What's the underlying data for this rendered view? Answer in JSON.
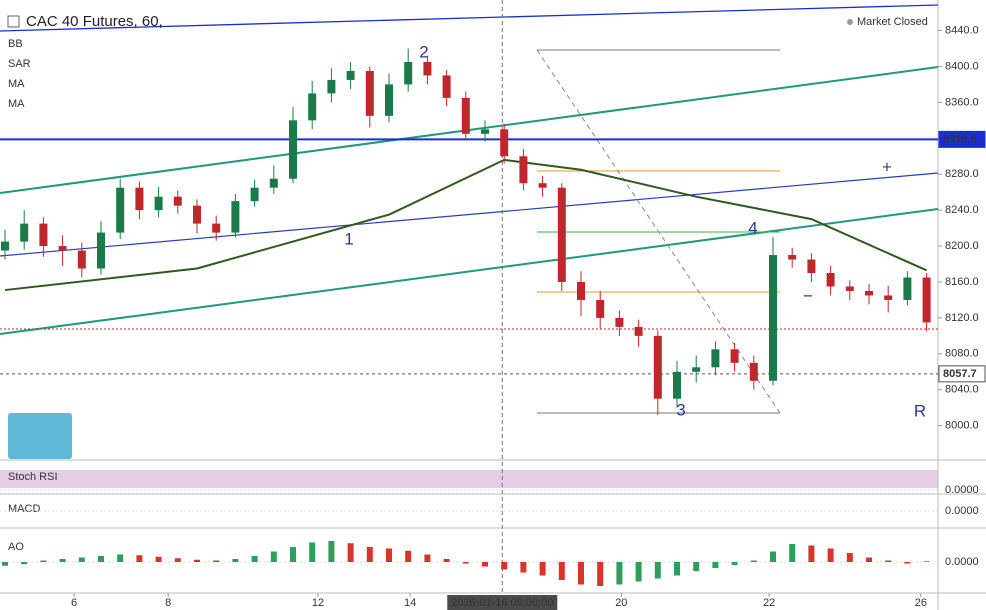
{
  "chart_data": {
    "type": "candlestick",
    "title": "CAC 40 Futures, 60,",
    "status": "Market Closed",
    "indicators": [
      "BB",
      "SAR",
      "MA",
      "MA"
    ],
    "open": [
      8195,
      8205,
      8225,
      8200,
      8195,
      8175,
      8215,
      8265,
      8240,
      8255,
      8245,
      8225,
      8215,
      8250,
      8265,
      8275,
      8340,
      8370,
      8385,
      8395,
      8345,
      8380,
      8405,
      8390,
      8365,
      8325,
      8330,
      8300,
      8270,
      8265,
      8160,
      8140,
      8120,
      8110,
      8100,
      8030,
      8060,
      8065,
      8085,
      8070,
      8050,
      8190,
      8185,
      8170,
      8155,
      8150,
      8145,
      8140,
      8165
    ],
    "high": [
      8218,
      8240,
      8232,
      8212,
      8204,
      8228,
      8275,
      8272,
      8266,
      8262,
      8252,
      8234,
      8258,
      8274,
      8290,
      8355,
      8384,
      8398,
      8405,
      8400,
      8392,
      8420,
      8412,
      8396,
      8372,
      8340,
      8336,
      8308,
      8278,
      8270,
      8172,
      8150,
      8128,
      8118,
      8106,
      8072,
      8078,
      8094,
      8092,
      8078,
      8210,
      8198,
      8192,
      8178,
      8162,
      8158,
      8156,
      8172,
      8170
    ],
    "low": [
      8185,
      8196,
      8188,
      8178,
      8165,
      8168,
      8208,
      8230,
      8232,
      8236,
      8214,
      8206,
      8210,
      8244,
      8258,
      8270,
      8330,
      8360,
      8375,
      8332,
      8338,
      8372,
      8380,
      8356,
      8318,
      8316,
      8292,
      8262,
      8255,
      8150,
      8122,
      8108,
      8100,
      8088,
      8012,
      8020,
      8048,
      8056,
      8060,
      8040,
      8045,
      8176,
      8160,
      8145,
      8140,
      8135,
      8126,
      8134,
      8105
    ],
    "close": [
      8205,
      8225,
      8200,
      8195,
      8175,
      8215,
      8265,
      8240,
      8255,
      8245,
      8225,
      8215,
      8250,
      8265,
      8275,
      8340,
      8370,
      8385,
      8395,
      8345,
      8380,
      8405,
      8390,
      8365,
      8325,
      8330,
      8300,
      8270,
      8265,
      8160,
      8140,
      8120,
      8110,
      8100,
      8030,
      8060,
      8065,
      8085,
      8070,
      8050,
      8190,
      8185,
      8170,
      8155,
      8150,
      8145,
      8140,
      8165,
      8115
    ],
    "up_color": "#1b7a4a",
    "down_color": "#c0262c",
    "ylim": [
      7964,
      8474
    ],
    "yticks": [
      {
        "value": 8000,
        "label": "8000.0"
      },
      {
        "value": 8040,
        "label": "8040.0"
      },
      {
        "value": 8080,
        "label": "8080.0"
      },
      {
        "value": 8120,
        "label": "8120.0"
      },
      {
        "value": 8160,
        "label": "8160.0"
      },
      {
        "value": 8200,
        "label": "8200.0"
      },
      {
        "value": 8240,
        "label": "8240.0"
      },
      {
        "value": 8280,
        "label": "8280.0"
      },
      {
        "value": 8320,
        "label": "8320.0"
      },
      {
        "value": 8360,
        "label": "8360.0"
      },
      {
        "value": 8400,
        "label": "8400.0"
      },
      {
        "value": 8440,
        "label": "8440.0"
      }
    ],
    "xticks": [
      {
        "value": 3.6,
        "label": "6"
      },
      {
        "value": 8.5,
        "label": "8"
      },
      {
        "value": 16.3,
        "label": "12"
      },
      {
        "value": 21.1,
        "label": "14"
      },
      {
        "value": 32.1,
        "label": "20"
      },
      {
        "value": 39.8,
        "label": "22"
      },
      {
        "value": 47.7,
        "label": "26"
      }
    ],
    "crosshair": {
      "x": 25.9,
      "label": "2026-01-16 09:00:00"
    },
    "price_lines": [
      {
        "value": 8318.8,
        "color": "#1a2fd0"
      },
      {
        "value": 8057.7,
        "color": "#555555"
      }
    ],
    "ma": {
      "color": "#2f5a1e",
      "x": [
        0,
        10,
        20,
        26,
        30,
        36,
        42,
        48
      ],
      "values": [
        8151,
        8175,
        8235,
        8296,
        8285,
        8255,
        8230,
        8173
      ]
    },
    "waves": [
      "1",
      "2",
      "3",
      "4",
      "R",
      "+",
      "−"
    ],
    "panes": [
      {
        "label": "Stoch RSI",
        "zero_label": "0.0000"
      },
      {
        "label": "MACD",
        "zero_label": "0.0000"
      },
      {
        "label": "AO",
        "zero_label": "0.0000"
      }
    ],
    "ao": {
      "values": [
        -5,
        -3,
        2,
        4,
        6,
        8,
        10,
        9,
        7,
        5,
        3,
        2,
        4,
        8,
        14,
        20,
        26,
        28,
        25,
        20,
        18,
        15,
        10,
        4,
        -2,
        -6,
        -10,
        -14,
        -18,
        -24,
        -30,
        -32,
        -30,
        -26,
        -22,
        -18,
        -12,
        -8,
        -4,
        2,
        14,
        24,
        22,
        18,
        12,
        6,
        2,
        -2,
        1
      ],
      "ylim": [
        -40,
        40
      ],
      "up_color": "#2e9e5b",
      "down_color": "#d9342b"
    }
  }
}
